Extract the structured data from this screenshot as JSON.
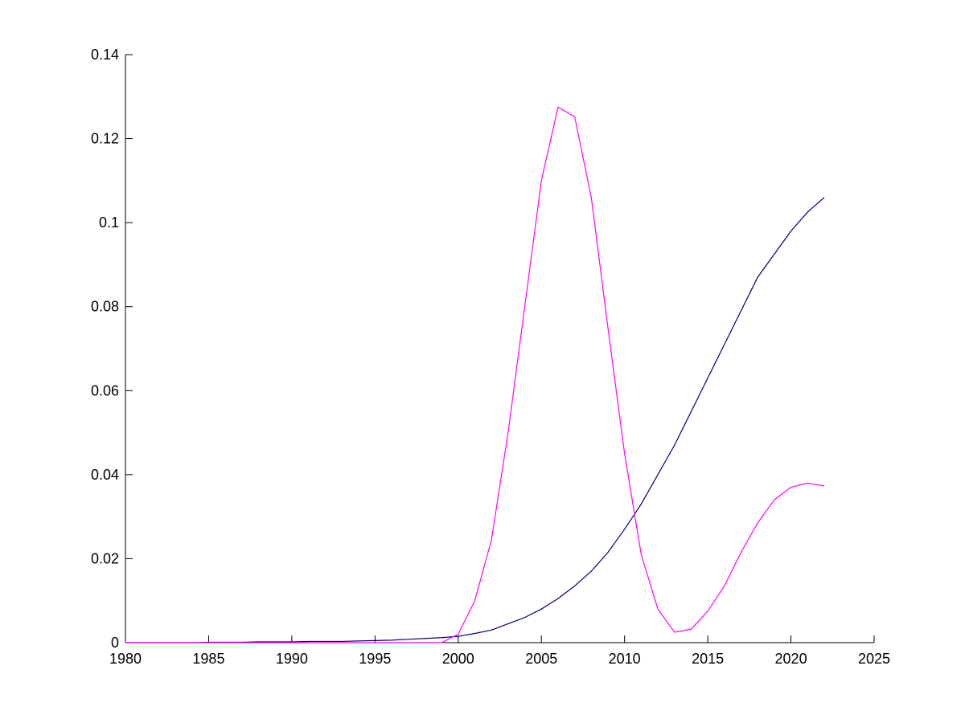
{
  "chart_data": {
    "type": "line",
    "x": [
      1980,
      1981,
      1982,
      1983,
      1984,
      1985,
      1986,
      1987,
      1988,
      1989,
      1990,
      1991,
      1992,
      1993,
      1994,
      1995,
      1996,
      1997,
      1998,
      1999,
      2000,
      2001,
      2002,
      2003,
      2004,
      2005,
      2006,
      2007,
      2008,
      2009,
      2010,
      2011,
      2012,
      2013,
      2014,
      2015,
      2016,
      2017,
      2018,
      2019,
      2020,
      2021,
      2022
    ],
    "series": [
      {
        "color": "#000080",
        "values": [
          0,
          0,
          0,
          0,
          0,
          0.0001,
          0.0001,
          0.0001,
          0.0002,
          0.0002,
          0.0002,
          0.0003,
          0.0003,
          0.0003,
          0.0004,
          0.0005,
          0.0006,
          0.0008,
          0.001,
          0.0012,
          0.0015,
          0.0022,
          0.003,
          0.0045,
          0.006,
          0.008,
          0.0105,
          0.0135,
          0.017,
          0.0215,
          0.027,
          0.033,
          0.04,
          0.047,
          0.055,
          0.063,
          0.071,
          0.079,
          0.087,
          0.0925,
          0.098,
          0.1025,
          0.106
        ]
      },
      {
        "color": "#ff00ff",
        "values": [
          0,
          0,
          0,
          0,
          0,
          0,
          0,
          0,
          0,
          0,
          0,
          0,
          0,
          0,
          0,
          0,
          0,
          0,
          0,
          0,
          0.002,
          0.01,
          0.0245,
          0.05,
          0.08,
          0.11,
          0.1275,
          0.1252,
          0.106,
          0.075,
          0.045,
          0.021,
          0.008,
          0.0025,
          0.0032,
          0.0075,
          0.0135,
          0.0215,
          0.0285,
          0.034,
          0.037,
          0.038,
          0.0373
        ]
      }
    ],
    "xlim": [
      1980,
      2025
    ],
    "xticks": [
      1980,
      1985,
      1990,
      1995,
      2000,
      2005,
      2010,
      2015,
      2020,
      2025
    ],
    "ylim": [
      0,
      0.14
    ],
    "yticks": [
      0,
      0.02,
      0.04,
      0.06,
      0.08,
      0.1,
      0.12,
      0.14
    ]
  }
}
